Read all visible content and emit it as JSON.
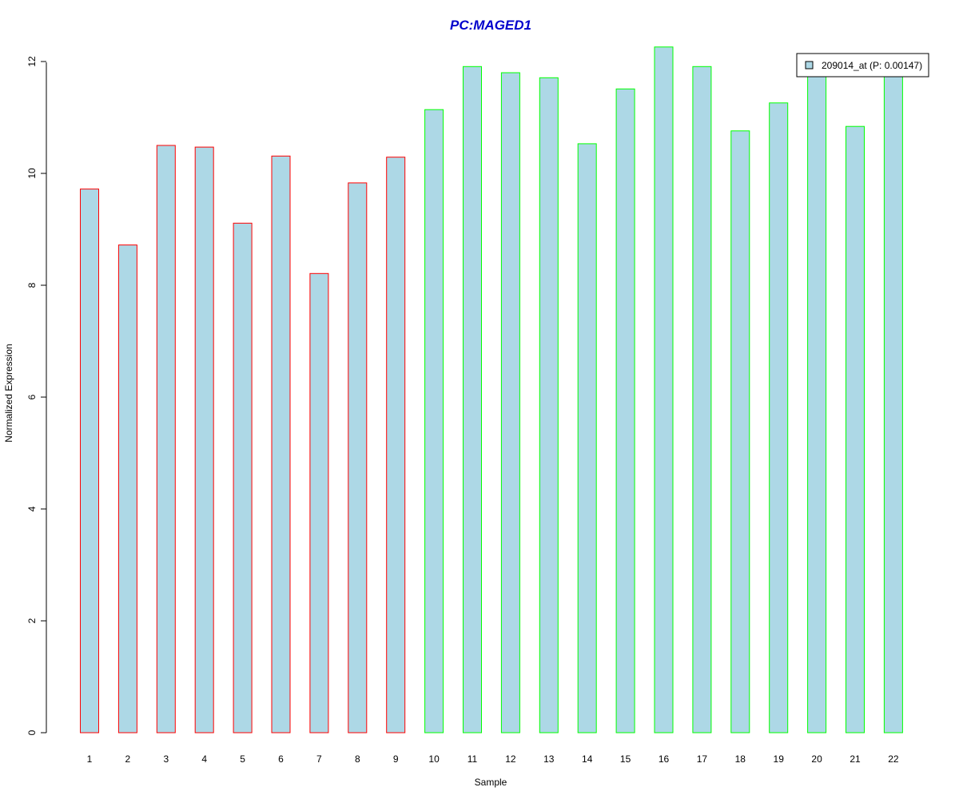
{
  "chart_data": {
    "type": "bar",
    "title": "PC:MAGED1",
    "xlabel": "Sample",
    "ylabel": "Normalized Expression",
    "categories": [
      "1",
      "2",
      "3",
      "4",
      "5",
      "6",
      "7",
      "8",
      "9",
      "10",
      "11",
      "12",
      "13",
      "14",
      "15",
      "16",
      "17",
      "18",
      "19",
      "20",
      "21",
      "22"
    ],
    "series": [
      {
        "name": "209014_at (P: 0.00147)",
        "values": [
          9.72,
          8.72,
          10.5,
          10.47,
          9.11,
          10.31,
          8.21,
          9.83,
          10.29,
          11.14,
          11.91,
          11.8,
          11.71,
          10.53,
          11.51,
          12.26,
          11.91,
          10.76,
          11.26,
          11.85,
          10.84,
          11.83
        ]
      }
    ],
    "group_border": [
      "red",
      "red",
      "red",
      "red",
      "red",
      "red",
      "red",
      "red",
      "red",
      "green",
      "green",
      "green",
      "green",
      "green",
      "green",
      "green",
      "green",
      "green",
      "green",
      "green",
      "green",
      "green"
    ],
    "ylim": [
      0,
      12.3
    ],
    "yticks": [
      0,
      2,
      4,
      6,
      8,
      10,
      12
    ],
    "grid": false,
    "legend_position": "top-right",
    "colors": {
      "bar_fill": "#ADD8E6",
      "border_red": "#FF0000",
      "border_green": "#00FF00",
      "title": "#0000CC",
      "axis": "#000000"
    }
  }
}
